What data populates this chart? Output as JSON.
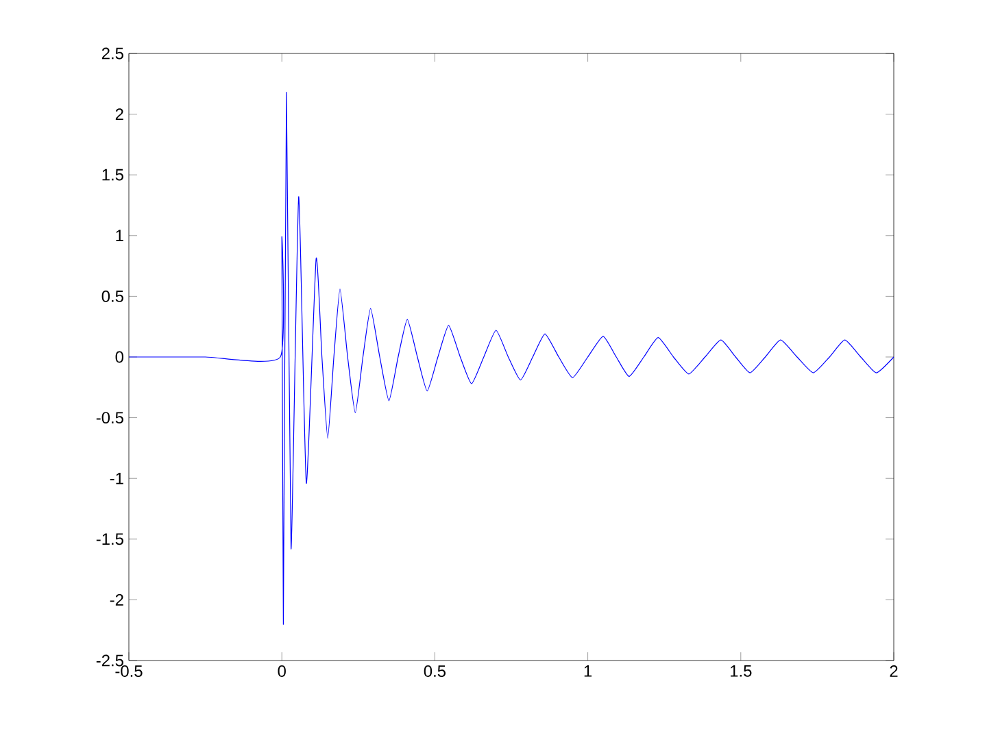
{
  "chart_data": {
    "type": "line",
    "x": [
      -0.5,
      -0.25,
      -0.005,
      0,
      0.005,
      0.015,
      0.03,
      0.055,
      0.08,
      0.112,
      0.131,
      0.15,
      0.17,
      0.19,
      0.215,
      0.24,
      0.265,
      0.29,
      0.32,
      0.35,
      0.38,
      0.41,
      0.443,
      0.475,
      0.51,
      0.545,
      0.583,
      0.62,
      0.66,
      0.7,
      0.74,
      0.78,
      0.82,
      0.86,
      0.905,
      0.95,
      1.0,
      1.05,
      1.093,
      1.135,
      1.183,
      1.23,
      1.28,
      1.33,
      1.383,
      1.435,
      1.483,
      1.53,
      1.58,
      1.63,
      1.684,
      1.737,
      1.79,
      1.84,
      1.892,
      1.943,
      2.0
    ],
    "series": [
      {
        "color": "#0000ff",
        "values": [
          0,
          0,
          0,
          0.97,
          -2.2,
          2.18,
          -1.58,
          1.32,
          -1.04,
          0.81,
          0,
          -0.67,
          0,
          0.56,
          0,
          -0.46,
          0,
          0.4,
          0,
          -0.36,
          0,
          0.31,
          0,
          -0.28,
          0,
          0.26,
          0,
          -0.22,
          0,
          0.22,
          0,
          -0.19,
          0,
          0.19,
          0,
          -0.17,
          0,
          0.17,
          0,
          -0.16,
          0,
          0.16,
          0,
          -0.14,
          0,
          0.14,
          0,
          -0.13,
          0,
          0.14,
          0,
          -0.13,
          0,
          0.14,
          0,
          -0.13,
          0
        ]
      }
    ],
    "xlim": [
      -0.5,
      2
    ],
    "ylim": [
      -2.5,
      2.5
    ],
    "xticks": [
      -0.5,
      0,
      0.5,
      1,
      1.5,
      2
    ],
    "yticks": [
      -2.5,
      -2,
      -1.5,
      -1,
      -0.5,
      0,
      0.5,
      1,
      1.5,
      2,
      2.5
    ],
    "grid": false,
    "marker": "none",
    "line_style": "solid"
  }
}
